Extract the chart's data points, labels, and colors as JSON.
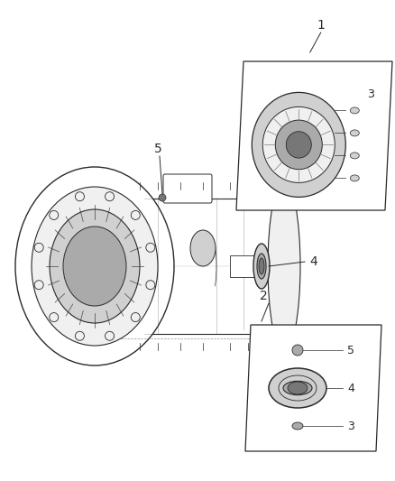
{
  "bg_color": "#ffffff",
  "fig_width": 4.38,
  "fig_height": 5.33,
  "dpi": 100,
  "label1": "1",
  "label2": "2",
  "label3": "3",
  "label4": "4",
  "label5": "5",
  "lc": "#2a2a2a",
  "lc_light": "#888888",
  "lc_mid": "#555555",
  "fill_light": "#f0f0f0",
  "fill_mid": "#d0d0d0",
  "fill_dark": "#aaaaaa",
  "fill_darkest": "#777777"
}
